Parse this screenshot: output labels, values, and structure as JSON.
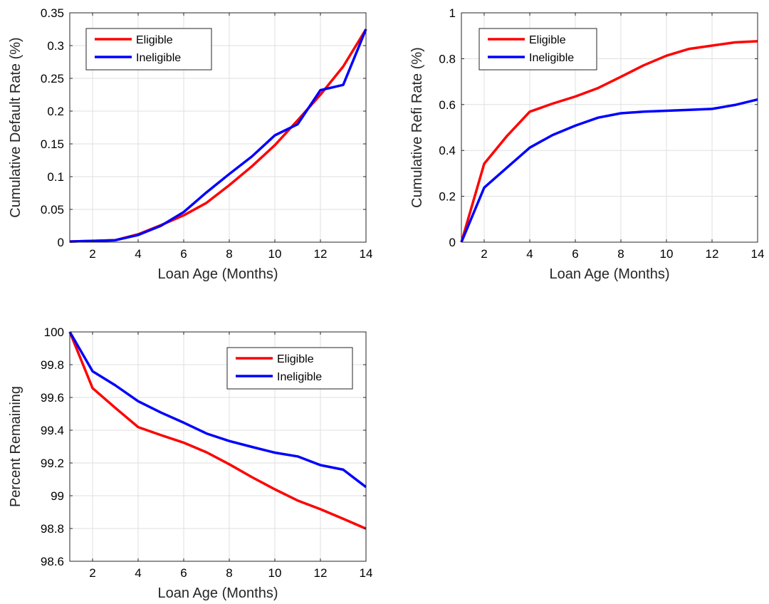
{
  "chart_data": [
    {
      "type": "line",
      "title": "",
      "xlabel": "Loan Age (Months)",
      "ylabel": "Cumulative Default Rate (%)",
      "xlim": [
        1,
        14
      ],
      "ylim": [
        0,
        0.35
      ],
      "xticks": [
        2,
        4,
        6,
        8,
        10,
        12,
        14
      ],
      "yticks": [
        0,
        0.05,
        0.1,
        0.15,
        0.2,
        0.25,
        0.3,
        0.35
      ],
      "ytick_labels": [
        "0",
        "0.05",
        "0.1",
        "0.15",
        "0.2",
        "0.25",
        "0.3",
        "0.35"
      ],
      "grid": true,
      "legend": "top-left",
      "x": [
        1,
        2,
        3,
        4,
        5,
        6,
        7,
        8,
        9,
        10,
        11,
        12,
        13,
        14
      ],
      "series": [
        {
          "name": "Eligible",
          "color": "#ff0000",
          "values": [
            0.001,
            0.002,
            0.003,
            0.012,
            0.026,
            0.041,
            0.06,
            0.087,
            0.116,
            0.148,
            0.186,
            0.225,
            0.268,
            0.325
          ]
        },
        {
          "name": "Ineligible",
          "color": "#0000ff",
          "values": [
            0.001,
            0.002,
            0.003,
            0.011,
            0.025,
            0.046,
            0.076,
            0.104,
            0.131,
            0.163,
            0.18,
            0.232,
            0.24,
            0.325
          ]
        }
      ]
    },
    {
      "type": "line",
      "title": "",
      "xlabel": "Loan Age (Months)",
      "ylabel": "Cumulative Refi Rate (%)",
      "xlim": [
        1,
        14
      ],
      "ylim": [
        0,
        1
      ],
      "xticks": [
        2,
        4,
        6,
        8,
        10,
        12,
        14
      ],
      "yticks": [
        0,
        0.2,
        0.4,
        0.6,
        0.8,
        1
      ],
      "ytick_labels": [
        "0",
        "0.2",
        "0.4",
        "0.6",
        "0.8",
        "1"
      ],
      "grid": true,
      "legend": "top-left",
      "x": [
        1,
        2,
        3,
        4,
        5,
        6,
        7,
        8,
        9,
        10,
        11,
        12,
        13,
        14
      ],
      "series": [
        {
          "name": "Eligible",
          "color": "#ff0000",
          "values": [
            0,
            0.342,
            0.463,
            0.569,
            0.604,
            0.635,
            0.672,
            0.721,
            0.771,
            0.813,
            0.843,
            0.857,
            0.871,
            0.876
          ]
        },
        {
          "name": "Ineligible",
          "color": "#0000ff",
          "values": [
            0,
            0.238,
            0.325,
            0.412,
            0.467,
            0.508,
            0.543,
            0.562,
            0.569,
            0.573,
            0.577,
            0.581,
            0.598,
            0.622
          ]
        }
      ]
    },
    {
      "type": "line",
      "title": "",
      "xlabel": "Loan Age (Months)",
      "ylabel": "Percent Remaining",
      "xlim": [
        1,
        14
      ],
      "ylim": [
        98.6,
        100
      ],
      "xticks": [
        2,
        4,
        6,
        8,
        10,
        12,
        14
      ],
      "yticks": [
        98.6,
        98.8,
        99,
        99.2,
        99.4,
        99.6,
        99.8,
        100
      ],
      "ytick_labels": [
        "98.6",
        "98.8",
        "99",
        "99.2",
        "99.4",
        "99.6",
        "99.8",
        "100"
      ],
      "grid": true,
      "legend": "top-right",
      "x": [
        1,
        2,
        3,
        4,
        5,
        6,
        7,
        8,
        9,
        10,
        11,
        12,
        13,
        14
      ],
      "series": [
        {
          "name": "Eligible",
          "color": "#ff0000",
          "values": [
            100,
            99.657,
            99.536,
            99.419,
            99.37,
            99.324,
            99.265,
            99.192,
            99.113,
            99.039,
            98.971,
            98.918,
            98.859,
            98.799
          ]
        },
        {
          "name": "Ineligible",
          "color": "#0000ff",
          "values": [
            100,
            99.76,
            99.674,
            99.577,
            99.508,
            99.446,
            99.38,
            99.334,
            99.298,
            99.263,
            99.24,
            99.187,
            99.159,
            99.053
          ]
        }
      ]
    }
  ]
}
